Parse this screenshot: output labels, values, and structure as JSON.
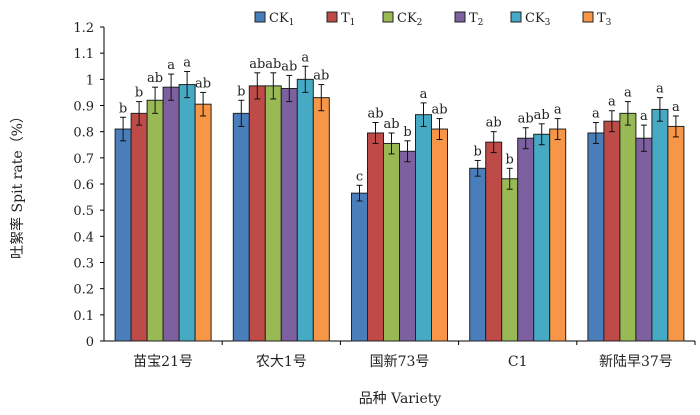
{
  "chart_data": {
    "type": "bar",
    "title": "",
    "xlabel": "品种 Variety",
    "ylabel": "吐絮率 Spit rate（%）",
    "ylim": [
      0,
      1.2
    ],
    "yticks": [
      "0",
      "0.1",
      "0.2",
      "0.3",
      "0.4",
      "0.5",
      "0.6",
      "0.7",
      "0.8",
      "0.9",
      "1",
      "1.1",
      "1.2"
    ],
    "categories": [
      "苗宝21号",
      "农大1号",
      "国新73号",
      "C1",
      "新陆早37号"
    ],
    "legend_position": "top",
    "series": [
      {
        "name": "CK",
        "sub": "1",
        "color": "#4a7ebb",
        "values": [
          0.81,
          0.87,
          0.565,
          0.66,
          0.795
        ],
        "errors": [
          0.045,
          0.05,
          0.03,
          0.03,
          0.04
        ],
        "letters": [
          "b",
          "b",
          "c",
          "b",
          "a"
        ]
      },
      {
        "name": "T",
        "sub": "1",
        "color": "#be4b48",
        "values": [
          0.87,
          0.975,
          0.795,
          0.76,
          0.84
        ],
        "errors": [
          0.045,
          0.05,
          0.04,
          0.04,
          0.04
        ],
        "letters": [
          "b",
          "ab",
          "ab",
          "ab",
          "a"
        ]
      },
      {
        "name": "CK",
        "sub": "2",
        "color": "#98b954",
        "values": [
          0.92,
          0.975,
          0.755,
          0.62,
          0.87
        ],
        "errors": [
          0.05,
          0.05,
          0.04,
          0.04,
          0.045
        ],
        "letters": [
          "ab",
          "ab",
          "ab",
          "b",
          "a"
        ]
      },
      {
        "name": "T",
        "sub": "2",
        "color": "#7d60a0",
        "values": [
          0.97,
          0.965,
          0.725,
          0.775,
          0.775
        ],
        "errors": [
          0.05,
          0.05,
          0.04,
          0.04,
          0.05
        ],
        "letters": [
          "a",
          "ab",
          "b",
          "ab",
          "a"
        ]
      },
      {
        "name": "CK",
        "sub": "3",
        "color": "#46aac5",
        "values": [
          0.98,
          1.0,
          0.865,
          0.79,
          0.885
        ],
        "errors": [
          0.05,
          0.05,
          0.045,
          0.04,
          0.045
        ],
        "letters": [
          "a",
          "a",
          "a",
          "ab",
          "a"
        ]
      },
      {
        "name": "T",
        "sub": "3",
        "color": "#f79646",
        "values": [
          0.905,
          0.93,
          0.81,
          0.81,
          0.82
        ],
        "errors": [
          0.045,
          0.05,
          0.04,
          0.04,
          0.04
        ],
        "letters": [
          "ab",
          "ab",
          "ab",
          "a",
          "a"
        ]
      }
    ]
  }
}
